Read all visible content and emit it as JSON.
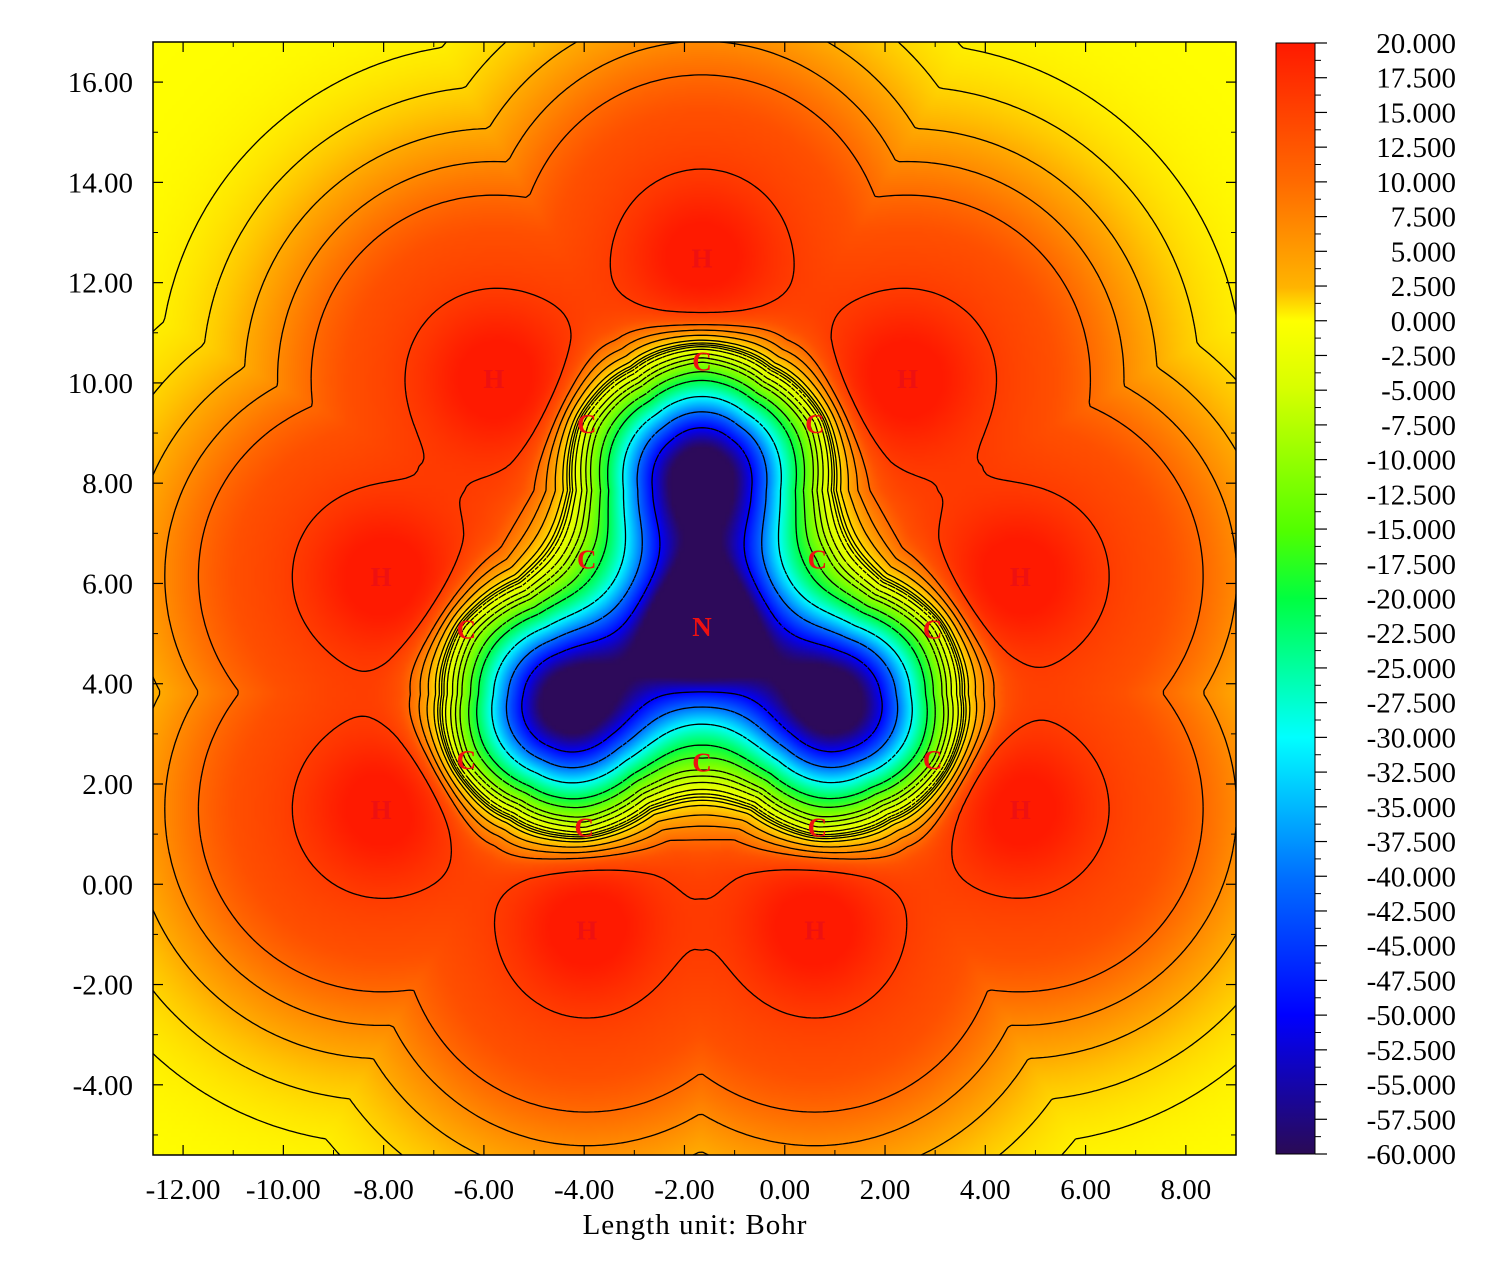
{
  "chart_data": {
    "type": "heatmap",
    "title": "",
    "xlabel": "Length unit: Bohr",
    "ylabel": "",
    "xlim": [
      -12.6,
      9.0
    ],
    "ylim": [
      -5.4,
      16.8
    ],
    "x_ticks": [
      "-12.00",
      "-10.00",
      "-8.00",
      "-6.00",
      "-4.00",
      "-2.00",
      "0.00",
      "2.00",
      "4.00",
      "6.00",
      "8.00"
    ],
    "y_ticks": [
      "16.00",
      "14.00",
      "12.00",
      "10.00",
      "8.00",
      "6.00",
      "4.00",
      "2.00",
      "0.00",
      "-2.00",
      "-4.00"
    ],
    "colorbar": {
      "min": -60.0,
      "max": 20.0,
      "labels": [
        "20.000",
        "17.500",
        "15.000",
        "12.500",
        "10.000",
        "7.500",
        "5.000",
        "2.500",
        "0.000",
        "-2.500",
        "-5.000",
        "-7.500",
        "-10.000",
        "-12.500",
        "-15.000",
        "-17.500",
        "-20.000",
        "-22.500",
        "-25.000",
        "-27.500",
        "-30.000",
        "-32.500",
        "-35.000",
        "-37.500",
        "-40.000",
        "-42.500",
        "-45.000",
        "-47.500",
        "-50.000",
        "-52.500",
        "-55.000",
        "-57.500",
        "-60.000"
      ]
    },
    "atoms": [
      {
        "label": "N",
        "x": -1.65,
        "y": 5.15
      },
      {
        "label": "C",
        "x": -1.65,
        "y": 10.45
      },
      {
        "label": "C",
        "x": -3.95,
        "y": 9.2
      },
      {
        "label": "C",
        "x": 0.6,
        "y": 9.2
      },
      {
        "label": "C",
        "x": -3.95,
        "y": 6.5
      },
      {
        "label": "C",
        "x": 0.65,
        "y": 6.5
      },
      {
        "label": "C",
        "x": -6.35,
        "y": 5.1
      },
      {
        "label": "C",
        "x": 2.95,
        "y": 5.1
      },
      {
        "label": "C",
        "x": -6.35,
        "y": 2.5
      },
      {
        "label": "C",
        "x": 2.95,
        "y": 2.5
      },
      {
        "label": "C",
        "x": -1.65,
        "y": 2.45
      },
      {
        "label": "C",
        "x": -4.0,
        "y": 1.15
      },
      {
        "label": "C",
        "x": 0.65,
        "y": 1.15
      },
      {
        "label": "H",
        "x": -1.65,
        "y": 12.5
      },
      {
        "label": "H",
        "x": -5.8,
        "y": 10.1
      },
      {
        "label": "H",
        "x": 2.45,
        "y": 10.1
      },
      {
        "label": "H",
        "x": -8.05,
        "y": 6.15
      },
      {
        "label": "H",
        "x": 4.7,
        "y": 6.15
      },
      {
        "label": "H",
        "x": -8.05,
        "y": 1.5
      },
      {
        "label": "H",
        "x": 4.7,
        "y": 1.5
      },
      {
        "label": "H",
        "x": -3.95,
        "y": -0.9
      },
      {
        "label": "H",
        "x": 0.6,
        "y": -0.9
      }
    ],
    "minima": [
      {
        "x": -1.65,
        "y": 8.15,
        "value": -55
      },
      {
        "x": -4.3,
        "y": 3.6,
        "value": -55
      },
      {
        "x": 1.0,
        "y": 3.6,
        "value": -55
      }
    ],
    "contour_levels": [
      -50,
      -40,
      -30,
      -20,
      -15,
      -10,
      -7.5,
      -5,
      -2.5,
      -1,
      0,
      1,
      2.5,
      5,
      7.5,
      10,
      15
    ]
  },
  "colors": {
    "background": "#ffffff",
    "atom_label": "#ee1111",
    "contour": "#000000"
  }
}
